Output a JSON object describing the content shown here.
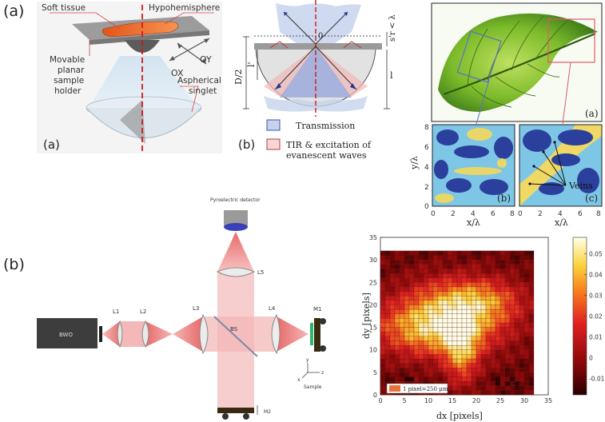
{
  "labels": {
    "part_a": "(a)",
    "part_b": "(b)"
  },
  "panel_a1": {
    "soft_tissue": "Soft tissue",
    "hypohemisphere": "Hypohemisphere",
    "holder_line1": "Movable",
    "holder_line2": "planar",
    "holder_line3": "sample",
    "holder_line4": "holder",
    "ox": "OX",
    "oy": "OY",
    "aspherical_line1": "Aspherical",
    "aspherical_line2": "singlet",
    "tag": "(a)"
  },
  "panel_a2": {
    "tag": "(b)",
    "zero": "0",
    "d2": "D/2",
    "l": "l",
    "lprime": "l'",
    "sr": "s'r < λ",
    "legend_transmission": "Transmission",
    "legend_tir_line1": "TIR & excitation of",
    "legend_tir_line2": "evanescent waves"
  },
  "panel_a3": {
    "tag_a": "(a)",
    "tag_b": "(b)",
    "tag_c": "(c)",
    "veins": "Veins",
    "ylabel": "y/λ",
    "xlabel_b": "x/λ",
    "xlabel_c": "x/λ",
    "xticks": [
      "0",
      "2",
      "4",
      "6",
      "8"
    ],
    "yticks": [
      "0",
      "2",
      "4",
      "6",
      "8"
    ]
  },
  "panel_b1": {
    "detector": "Pyroelectric detector",
    "bwo": "BWO",
    "l1": "L1",
    "l2": "L2",
    "l3": "L3",
    "l4": "L4",
    "l5": "L5",
    "bs": "BS",
    "m1": "M1",
    "m2": "M2",
    "sample": "Sample",
    "x": "x",
    "y": "y",
    "z": "z"
  },
  "chart_data": {
    "type": "heatmap",
    "xlabel": "dx [pixels]",
    "ylabel": "dy [pixels]",
    "xlim": [
      0,
      35
    ],
    "ylim": [
      0,
      35
    ],
    "xticks": [
      "0",
      "5",
      "10",
      "15",
      "20",
      "25",
      "30",
      "35"
    ],
    "yticks": [
      "0",
      "5",
      "10",
      "15",
      "20",
      "25",
      "30",
      "35"
    ],
    "grid_size": 32,
    "colorbar_ticks": [
      "0.05",
      "0.04",
      "0.03",
      "0.02",
      "0.01",
      "0",
      "-0.01"
    ],
    "colorbar_values": [
      0.05,
      0.04,
      0.03,
      0.02,
      0.01,
      0,
      -0.01
    ],
    "vmin": -0.018,
    "vmax": 0.058,
    "legend": "1 pixel=250 μm",
    "colors": {
      "low": "#3a0000",
      "mid": "#d41a1a",
      "high": "#fff8c8",
      "legend_swatch": "#e8733a"
    }
  }
}
